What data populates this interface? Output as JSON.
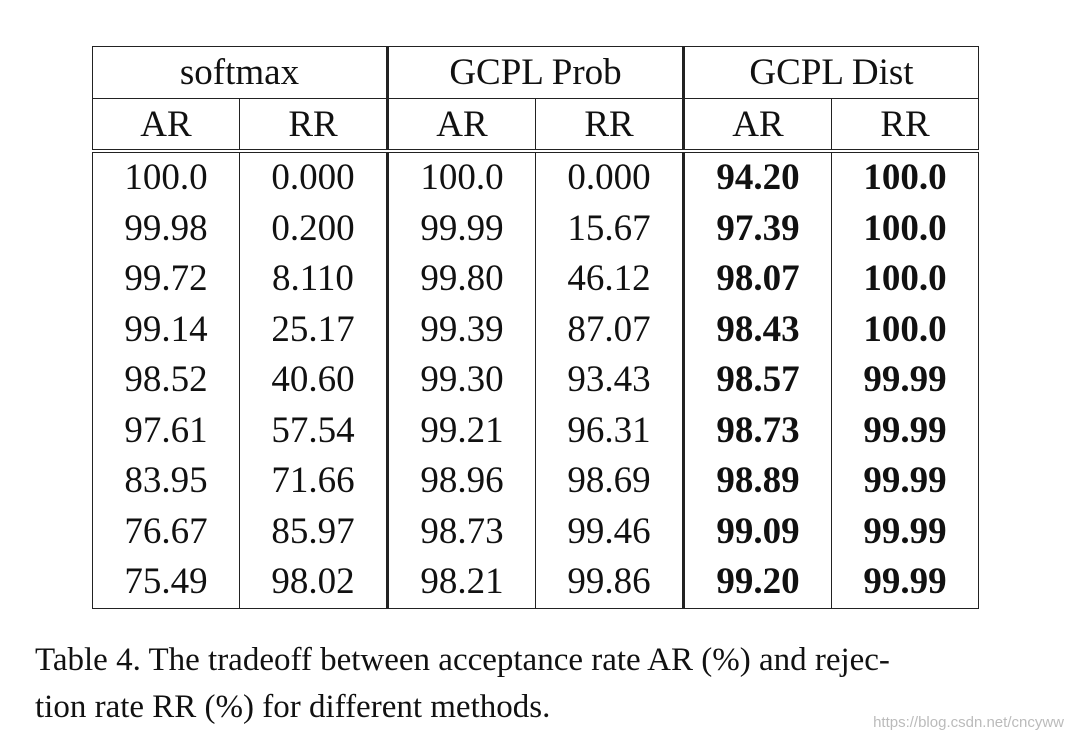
{
  "table": {
    "groups": [
      "softmax",
      "GCPL Prob",
      "GCPL Dist"
    ],
    "subheaders": [
      "AR",
      "RR",
      "AR",
      "RR",
      "AR",
      "RR"
    ],
    "rows": [
      [
        "100.0",
        "0.000",
        "100.0",
        "0.000",
        "94.20",
        "100.0"
      ],
      [
        "99.98",
        "0.200",
        "99.99",
        "15.67",
        "97.39",
        "100.0"
      ],
      [
        "99.72",
        "8.110",
        "99.80",
        "46.12",
        "98.07",
        "100.0"
      ],
      [
        "99.14",
        "25.17",
        "99.39",
        "87.07",
        "98.43",
        "100.0"
      ],
      [
        "98.52",
        "40.60",
        "99.30",
        "93.43",
        "98.57",
        "99.99"
      ],
      [
        "97.61",
        "57.54",
        "99.21",
        "96.31",
        "98.73",
        "99.99"
      ],
      [
        "83.95",
        "71.66",
        "98.96",
        "98.69",
        "98.89",
        "99.99"
      ],
      [
        "76.67",
        "85.97",
        "98.73",
        "99.46",
        "99.09",
        "99.99"
      ],
      [
        "75.49",
        "98.02",
        "98.21",
        "99.86",
        "99.20",
        "99.99"
      ]
    ]
  },
  "caption": {
    "lines": [
      "Table 4. The tradeoff between acceptance rate AR (%) and rejec-",
      "tion rate RR (%) for different methods."
    ]
  },
  "watermark": "https://blog.csdn.net/cncyww"
}
